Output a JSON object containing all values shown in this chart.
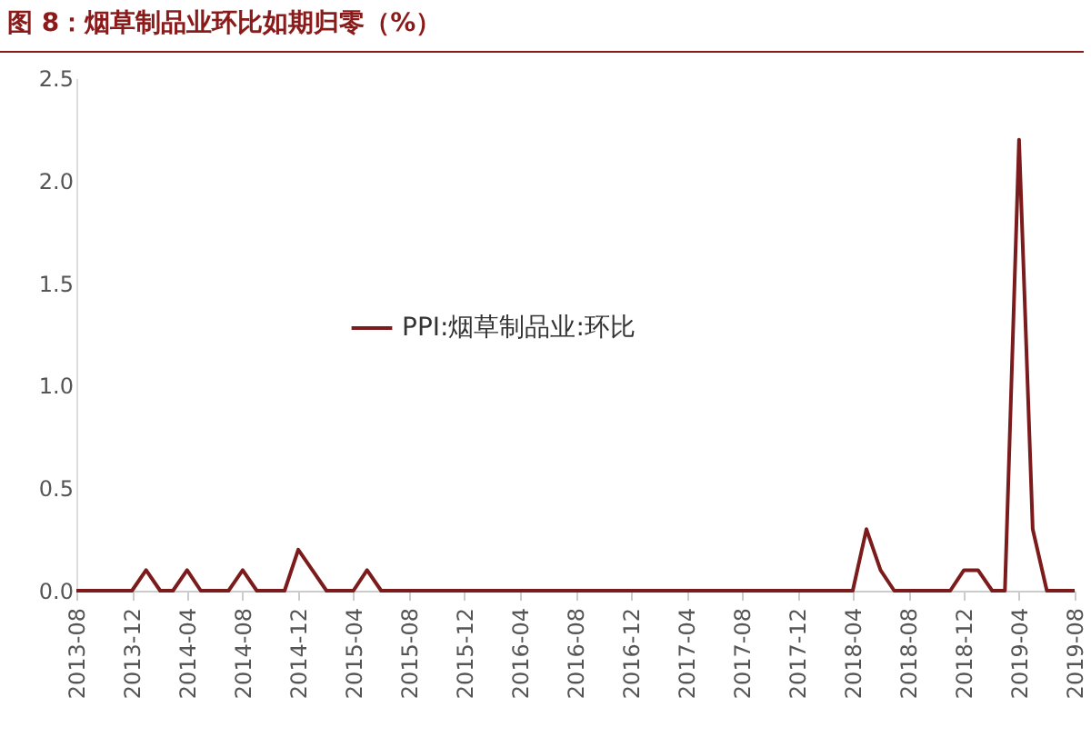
{
  "chart_data": {
    "type": "line",
    "title": "图 8：烟草制品业环比如期归零（%）",
    "x": [
      "2013-08",
      "2013-09",
      "2013-10",
      "2013-11",
      "2013-12",
      "2014-01",
      "2014-02",
      "2014-03",
      "2014-04",
      "2014-05",
      "2014-06",
      "2014-07",
      "2014-08",
      "2014-09",
      "2014-10",
      "2014-11",
      "2014-12",
      "2015-01",
      "2015-02",
      "2015-03",
      "2015-04",
      "2015-05",
      "2015-06",
      "2015-07",
      "2015-08",
      "2015-09",
      "2015-10",
      "2015-11",
      "2015-12",
      "2016-01",
      "2016-02",
      "2016-03",
      "2016-04",
      "2016-05",
      "2016-06",
      "2016-07",
      "2016-08",
      "2016-09",
      "2016-10",
      "2016-11",
      "2016-12",
      "2017-01",
      "2017-02",
      "2017-03",
      "2017-04",
      "2017-05",
      "2017-06",
      "2017-07",
      "2017-08",
      "2017-09",
      "2017-10",
      "2017-11",
      "2017-12",
      "2018-01",
      "2018-02",
      "2018-03",
      "2018-04",
      "2018-05",
      "2018-06",
      "2018-07",
      "2018-08",
      "2018-09",
      "2018-10",
      "2018-11",
      "2018-12",
      "2019-01",
      "2019-02",
      "2019-03",
      "2019-04",
      "2019-05",
      "2019-06",
      "2019-07",
      "2019-08"
    ],
    "series": [
      {
        "name": "PPI:烟草制品业:环比",
        "color": "#7b1b1b",
        "values": [
          0,
          0,
          0,
          0,
          0,
          0.1,
          0,
          0,
          0.1,
          0,
          0,
          0,
          0.1,
          0,
          0,
          0,
          0.2,
          0.1,
          0,
          0,
          0,
          0.1,
          0,
          0,
          0,
          0,
          0,
          0,
          0,
          0,
          0,
          0,
          0,
          0,
          0,
          0,
          0,
          0,
          0,
          0,
          0,
          0,
          0,
          0,
          0,
          0,
          0,
          0,
          0,
          0,
          0,
          0,
          0,
          0,
          0,
          0,
          0,
          0.3,
          0.1,
          0,
          0,
          0,
          0,
          0,
          0.1,
          0.1,
          0,
          0,
          2.2,
          0.3,
          0,
          0,
          0
        ]
      }
    ],
    "xlim": [
      "2013-08",
      "2019-08"
    ],
    "xticks": [
      "2013-08",
      "2013-12",
      "2014-04",
      "2014-08",
      "2014-12",
      "2015-04",
      "2015-08",
      "2015-12",
      "2016-04",
      "2016-08",
      "2016-12",
      "2017-04",
      "2017-08",
      "2017-12",
      "2018-04",
      "2018-08",
      "2018-12",
      "2019-04",
      "2019-08"
    ],
    "ylim": [
      0,
      2.5
    ],
    "yticks": [
      {
        "value": 0,
        "label": "0.0"
      },
      {
        "value": 0.5,
        "label": "0.5"
      },
      {
        "value": 1,
        "label": "1.0"
      },
      {
        "value": 1.5,
        "label": "1.5"
      },
      {
        "value": 2,
        "label": "2.0"
      },
      {
        "value": 2.5,
        "label": "2.5"
      }
    ],
    "grid": false,
    "legend": "left",
    "marker": "none",
    "line_style": "solid"
  }
}
